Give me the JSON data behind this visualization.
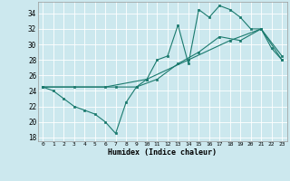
{
  "xlabel": "Humidex (Indice chaleur)",
  "ylabel": "",
  "background_color": "#cce8ee",
  "grid_color": "#b0d0d8",
  "line_color": "#1a7a6e",
  "xlim": [
    -0.5,
    23.5
  ],
  "ylim": [
    17.5,
    35.5
  ],
  "yticks": [
    18,
    20,
    22,
    24,
    26,
    28,
    30,
    32,
    34
  ],
  "xticks": [
    0,
    1,
    2,
    3,
    4,
    5,
    6,
    7,
    8,
    9,
    10,
    11,
    12,
    13,
    14,
    15,
    16,
    17,
    18,
    19,
    20,
    21,
    22,
    23
  ],
  "line1_x": [
    0,
    1,
    2,
    3,
    4,
    5,
    6,
    7,
    8,
    9,
    10,
    11,
    12,
    13,
    14,
    15,
    16,
    17,
    18,
    19,
    20,
    21,
    22,
    23
  ],
  "line1_y": [
    24.5,
    24.0,
    23.0,
    22.0,
    21.5,
    21.0,
    20.0,
    18.5,
    22.5,
    24.5,
    25.5,
    28.0,
    28.5,
    32.5,
    27.5,
    34.5,
    33.5,
    35.0,
    34.5,
    33.5,
    32.0,
    32.0,
    29.5,
    28.0
  ],
  "line2_x": [
    0,
    3,
    7,
    9,
    11,
    13,
    15,
    17,
    19,
    21,
    23
  ],
  "line2_y": [
    24.5,
    24.5,
    24.5,
    24.5,
    25.5,
    27.5,
    29.0,
    31.0,
    30.5,
    32.0,
    28.0
  ],
  "line3_x": [
    0,
    6,
    10,
    14,
    18,
    21,
    23
  ],
  "line3_y": [
    24.5,
    24.5,
    25.5,
    28.0,
    30.5,
    32.0,
    28.5
  ]
}
